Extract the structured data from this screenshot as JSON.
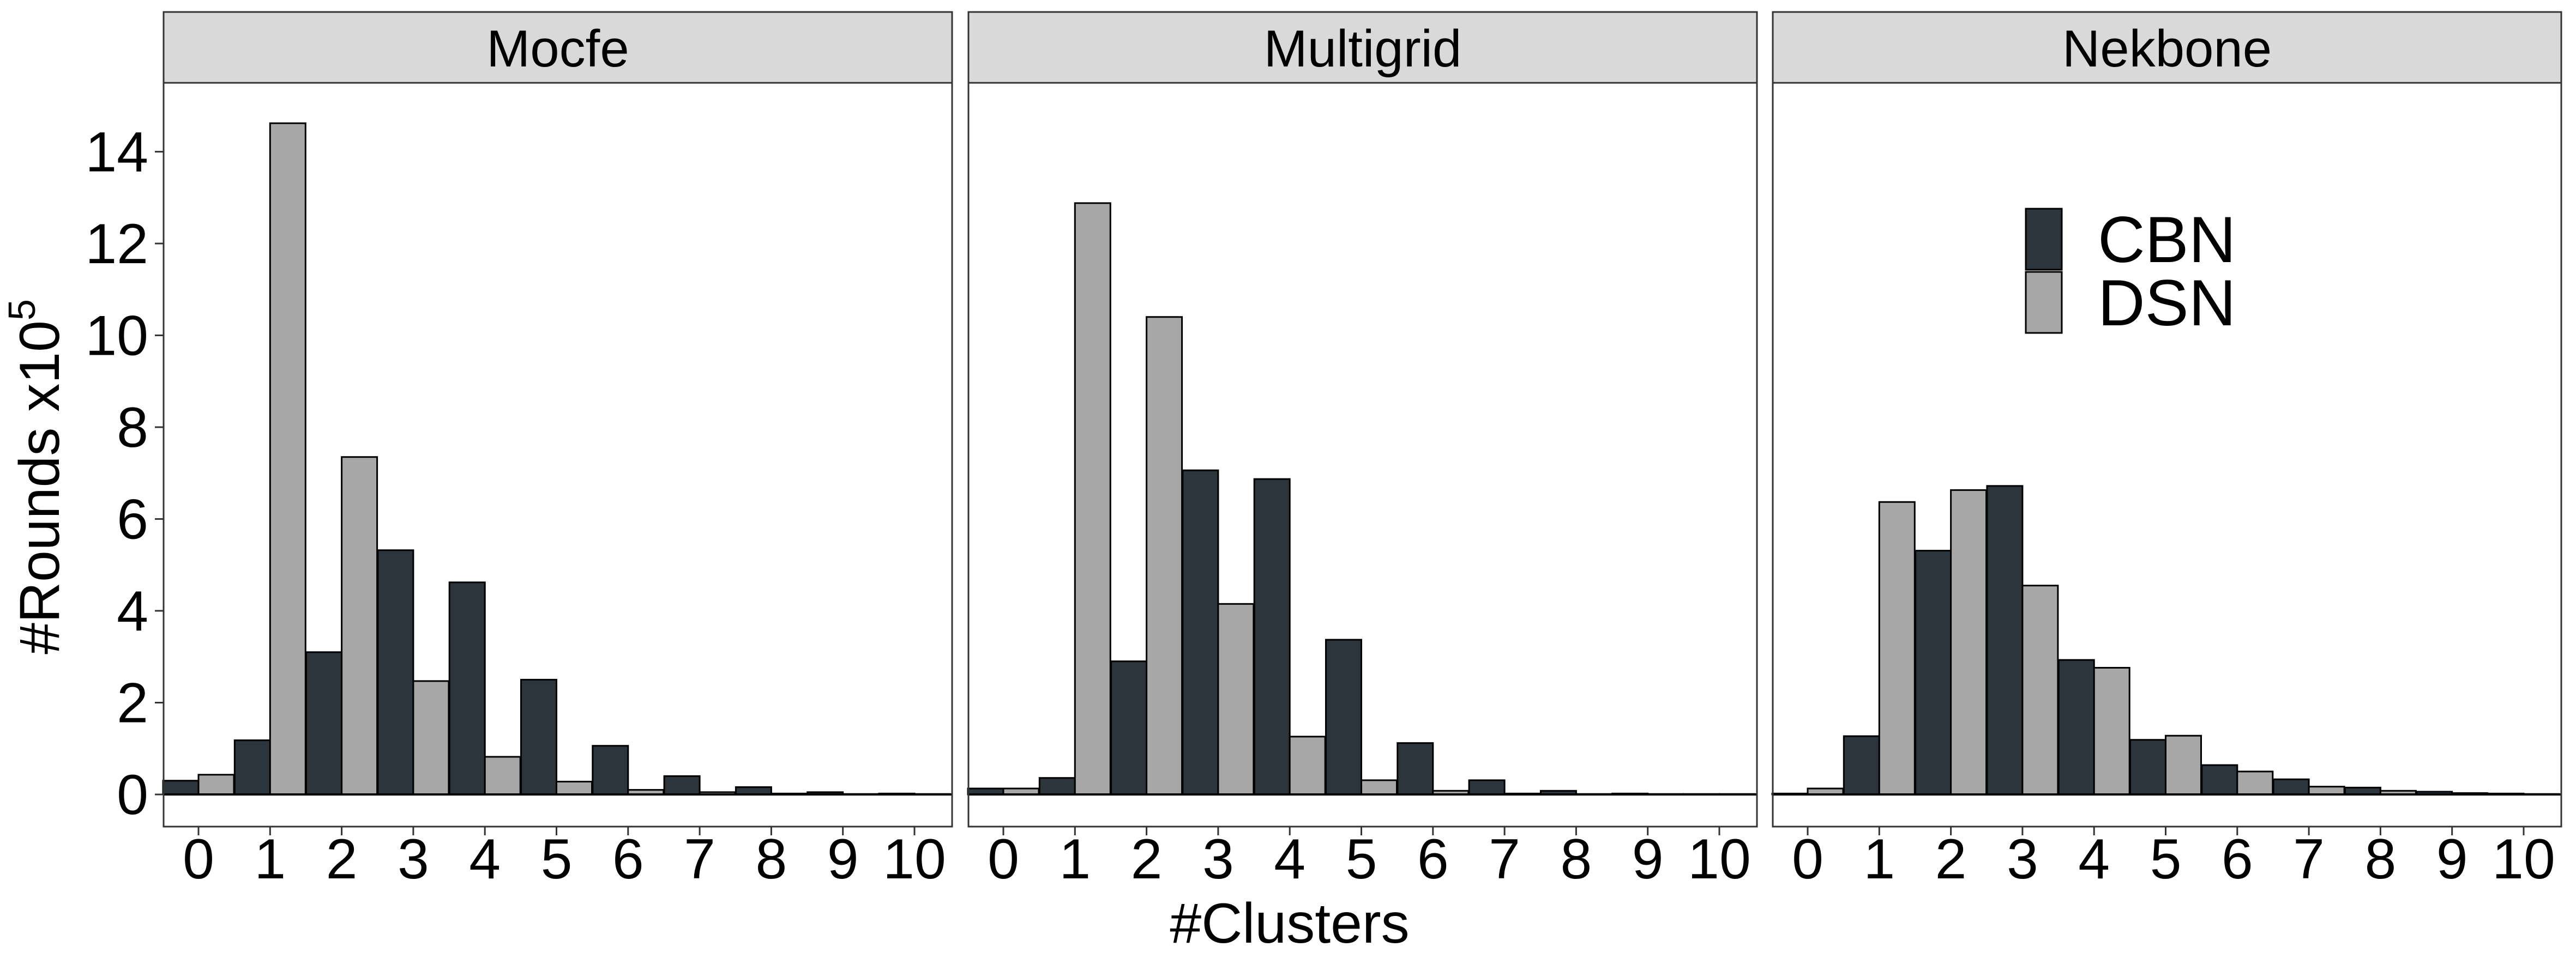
{
  "chart_data": {
    "type": "bar",
    "xlabel": "#Clusters",
    "ylabel_main": "#Rounds x10",
    "ylabel_superscript": "5",
    "ylim": [
      -0.7,
      15.5
    ],
    "yticks": [
      0,
      2,
      4,
      6,
      8,
      10,
      12,
      14
    ],
    "categories": [
      "0",
      "1",
      "2",
      "3",
      "4",
      "5",
      "6",
      "7",
      "8",
      "9",
      "10"
    ],
    "legend": {
      "position": "top-right",
      "entries": [
        {
          "name": "CBN",
          "color": "#2b353b"
        },
        {
          "name": "DSN",
          "color": "#a7a7a7"
        }
      ]
    },
    "panels": [
      {
        "title": "Mocfe",
        "series": [
          {
            "name": "CBN",
            "values": [
              0.3,
              1.18,
              3.1,
              5.32,
              4.62,
              2.5,
              1.06,
              0.4,
              0.16,
              0.05,
              0.02
            ]
          },
          {
            "name": "DSN",
            "values": [
              0.43,
              14.62,
              7.35,
              2.47,
              0.82,
              0.28,
              0.1,
              0.05,
              0.02,
              0.01,
              0.01
            ]
          }
        ]
      },
      {
        "title": "Multigrid",
        "series": [
          {
            "name": "CBN",
            "values": [
              0.13,
              0.36,
              2.9,
              7.06,
              6.87,
              3.37,
              1.12,
              0.31,
              0.08,
              0.02,
              0.01
            ]
          },
          {
            "name": "DSN",
            "values": [
              0.13,
              12.88,
              10.4,
              4.15,
              1.26,
              0.31,
              0.08,
              0.02,
              0.01,
              0.01,
              0.01
            ]
          }
        ]
      },
      {
        "title": "Nekbone",
        "series": [
          {
            "name": "CBN",
            "values": [
              0.02,
              1.27,
              5.31,
              6.72,
              2.93,
              1.19,
              0.64,
              0.33,
              0.15,
              0.06,
              0.02
            ]
          },
          {
            "name": "DSN",
            "values": [
              0.13,
              6.37,
              6.63,
              4.55,
              2.76,
              1.28,
              0.5,
              0.17,
              0.08,
              0.03,
              0.01
            ]
          }
        ]
      }
    ]
  }
}
